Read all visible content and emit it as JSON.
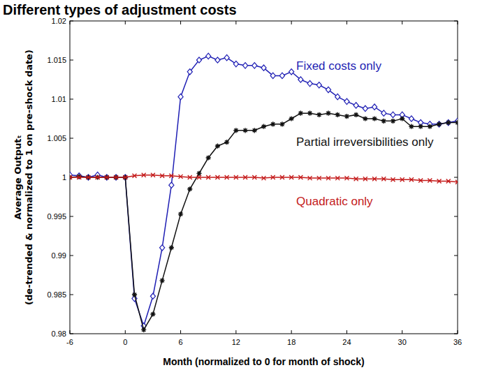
{
  "chart_data": {
    "type": "line",
    "title": "Different types of adjustment costs",
    "x_label": "Month (normalized to 0 for month of shock)",
    "y_label": [
      "Average Outputₜ",
      "(de-trended & normalized to 1 on pre-shock date)"
    ],
    "x": [
      -6,
      -5,
      -4,
      -3,
      -2,
      -1,
      0,
      1,
      2,
      3,
      4,
      5,
      6,
      7,
      8,
      9,
      10,
      11,
      12,
      13,
      14,
      15,
      16,
      17,
      18,
      19,
      20,
      21,
      22,
      23,
      24,
      25,
      26,
      27,
      28,
      29,
      30,
      31,
      32,
      33,
      34,
      35,
      36
    ],
    "xlim": [
      -6,
      36
    ],
    "xticks": [
      -6,
      0,
      6,
      12,
      18,
      24,
      30,
      36
    ],
    "ylim": [
      0.98,
      1.02
    ],
    "yticks": [
      0.98,
      0.985,
      0.99,
      0.995,
      1,
      1.005,
      1.01,
      1.015,
      1.02
    ],
    "grid": false,
    "series": [
      {
        "name": "Fixed costs only",
        "color": "#1f1fb4",
        "marker": "diamond",
        "line_style": "solid",
        "values": [
          1.0003,
          1.0002,
          1.0,
          1.0003,
          1.0,
          1.0,
          1.0,
          0.9845,
          0.981,
          0.9848,
          0.991,
          0.999,
          1.0103,
          1.0135,
          1.015,
          1.0155,
          1.015,
          1.0153,
          1.0145,
          1.0143,
          1.0143,
          1.014,
          1.013,
          1.013,
          1.0135,
          1.0125,
          1.012,
          1.0118,
          1.0112,
          1.0103,
          1.0097,
          1.0092,
          1.0088,
          1.009,
          1.0082,
          1.008,
          1.008,
          1.0075,
          1.007,
          1.0068,
          1.0068,
          1.007,
          1.0072
        ]
      },
      {
        "name": "Partial irreversibilities only",
        "color": "#111111",
        "marker": "star",
        "line_style": "solid",
        "values": [
          1.0,
          1.0001,
          1.0,
          1.0,
          1.0,
          1.0,
          1.0,
          0.985,
          0.9805,
          0.9825,
          0.9868,
          0.991,
          0.9953,
          0.9985,
          1.0005,
          1.0025,
          1.004,
          1.0045,
          1.006,
          1.006,
          1.006,
          1.0065,
          1.0068,
          1.0068,
          1.0075,
          1.0082,
          1.0082,
          1.008,
          1.0082,
          1.008,
          1.0078,
          1.008,
          1.0075,
          1.0075,
          1.0072,
          1.0072,
          1.0075,
          1.0065,
          1.0065,
          1.0065,
          1.0068,
          1.007,
          1.007
        ]
      },
      {
        "name": "Quadratic only",
        "color": "#c41a1a",
        "marker": "x",
        "line_style": "solid",
        "values": [
          1.0,
          1.0,
          1.0,
          1.0,
          1.0,
          1.0,
          1.0,
          1.0002,
          1.0003,
          1.0003,
          1.0002,
          1.0002,
          1.0001,
          1.0,
          1.0,
          1.0,
          1.0,
          1.0,
          1.0,
          1.0,
          1.0,
          0.9999,
          1.0,
          1.0,
          1.0,
          1.0,
          0.9999,
          0.9999,
          0.9999,
          0.9999,
          0.9999,
          0.9998,
          0.9998,
          0.9998,
          0.9998,
          0.9997,
          0.9997,
          0.9997,
          0.9996,
          0.9996,
          0.9995,
          0.9995,
          0.9994
        ]
      }
    ]
  }
}
